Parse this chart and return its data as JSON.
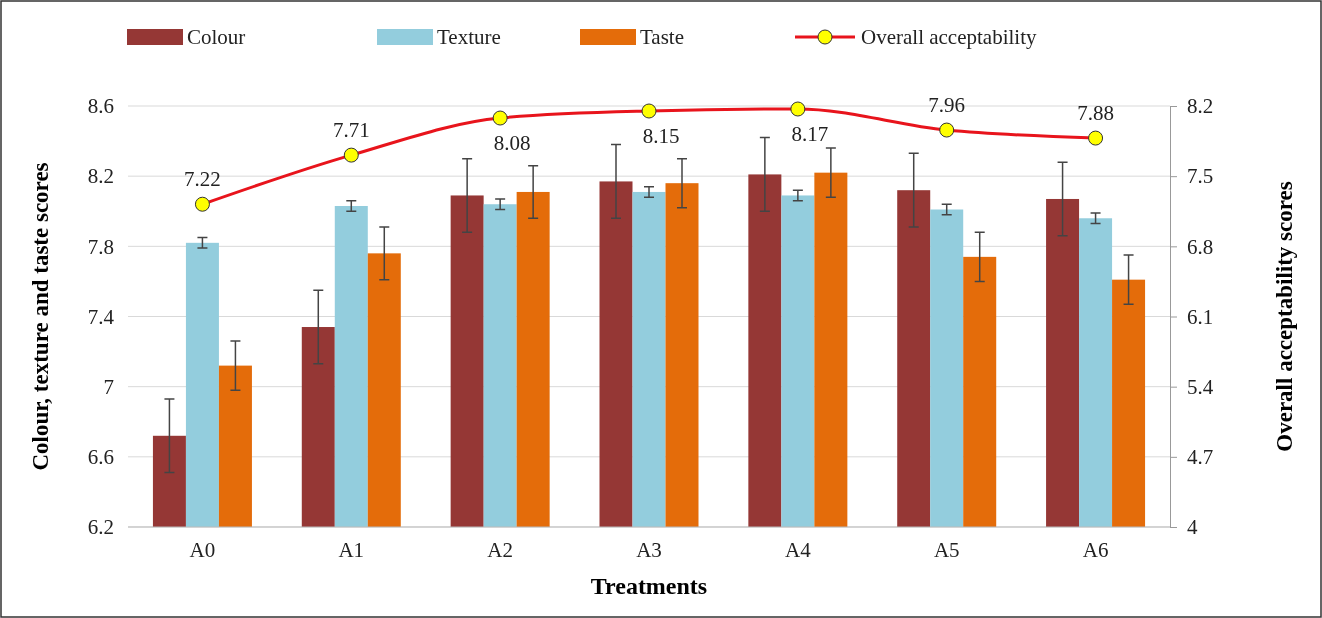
{
  "chart_data": {
    "type": "bar",
    "xlabel": "Treatments",
    "ylabel": "Colour, texture and taste scores",
    "y2label": "Overall acceptability scores",
    "categories": [
      "A0",
      "A1",
      "A2",
      "A3",
      "A4",
      "A5",
      "A6"
    ],
    "series": [
      {
        "name": "Colour",
        "color": "#953735",
        "values": [
          6.72,
          7.34,
          8.09,
          8.17,
          8.21,
          8.12,
          8.07
        ],
        "errors": [
          0.21,
          0.21,
          0.21,
          0.21,
          0.21,
          0.21,
          0.21
        ]
      },
      {
        "name": "Texture",
        "color": "#93cddd",
        "values": [
          7.82,
          8.03,
          8.04,
          8.11,
          8.09,
          8.01,
          7.96
        ],
        "errors": [
          0.03,
          0.03,
          0.03,
          0.03,
          0.03,
          0.03,
          0.03
        ]
      },
      {
        "name": "Taste",
        "color": "#e46c0a",
        "values": [
          7.12,
          7.76,
          8.11,
          8.16,
          8.22,
          7.74,
          7.61
        ],
        "errors": [
          0.14,
          0.15,
          0.15,
          0.14,
          0.14,
          0.14,
          0.14
        ]
      },
      {
        "name": "Overall acceptability",
        "type": "line",
        "axis": "y2",
        "color": "#e8141c",
        "values": [
          7.22,
          7.71,
          8.08,
          8.15,
          8.17,
          7.96,
          7.88
        ],
        "data_labels": true,
        "marker": "circle"
      }
    ],
    "ylim": [
      6.2,
      8.6
    ],
    "yticks": [
      6.2,
      6.6,
      {
        "value": 7,
        "label": "7"
      },
      7.4,
      7.8,
      8.2,
      8.6
    ],
    "y2lim": [
      4,
      8.2
    ],
    "y2ticks": [
      {
        "value": 4,
        "label": "4"
      },
      4.7,
      5.4,
      6.1,
      6.8,
      7.5,
      8.2
    ],
    "grid": "y",
    "legend": "top"
  }
}
